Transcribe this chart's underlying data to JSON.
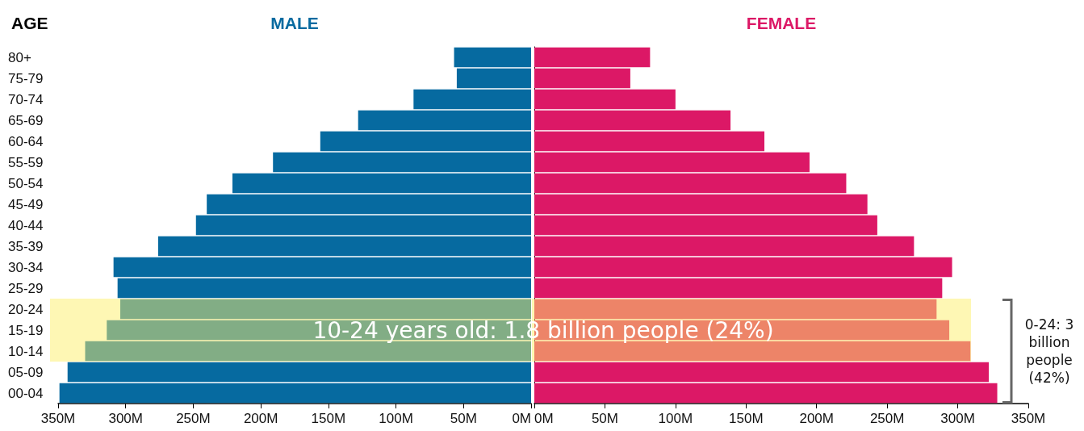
{
  "chart_data": [
    {
      "type": "bar",
      "orientation": "horizontal",
      "ylabel": "AGE",
      "categories": [
        "80+",
        "75-79",
        "70-74",
        "65-69",
        "60-64",
        "55-59",
        "50-54",
        "45-49",
        "40-44",
        "35-39",
        "30-34",
        "25-29",
        "20-24",
        "15-19",
        "10-14",
        "05-09",
        "00-04"
      ],
      "series": [
        {
          "name": "MALE",
          "color": "#066aa0",
          "values": [
            57,
            55,
            87,
            128,
            156,
            191,
            221,
            240,
            248,
            276,
            309,
            306,
            304,
            314,
            330,
            343,
            349
          ]
        }
      ],
      "xlim": [
        350,
        0
      ],
      "xticks": [
        {
          "value": 350,
          "label": "350M"
        },
        {
          "value": 300,
          "label": "300M"
        },
        {
          "value": 250,
          "label": "250M"
        },
        {
          "value": 200,
          "label": "200M"
        },
        {
          "value": 150,
          "label": "150M"
        },
        {
          "value": 100,
          "label": "100M"
        },
        {
          "value": 50,
          "label": "50M"
        },
        {
          "value": 0,
          "label": "0M"
        }
      ],
      "bands": [
        {
          "axis": "y",
          "from": "10-14",
          "to": "20-24",
          "label": "10-24 years old: 1.8 billion people (24%)",
          "color": "#fdf06a"
        }
      ],
      "grid": false,
      "legend": false
    },
    {
      "type": "bar",
      "orientation": "horizontal",
      "categories": [
        "80+",
        "75-79",
        "70-74",
        "65-69",
        "60-64",
        "55-59",
        "50-54",
        "45-49",
        "40-44",
        "35-39",
        "30-34",
        "25-29",
        "20-24",
        "15-19",
        "10-14",
        "05-09",
        "00-04"
      ],
      "series": [
        {
          "name": "FEMALE",
          "color": "#dc1866",
          "values": [
            82,
            68,
            100,
            139,
            163,
            195,
            221,
            236,
            243,
            269,
            296,
            289,
            285,
            294,
            309,
            322,
            328
          ]
        }
      ],
      "xlim": [
        0,
        350
      ],
      "xticks": [
        {
          "value": 0,
          "label": "0M"
        },
        {
          "value": 50,
          "label": "50M"
        },
        {
          "value": 100,
          "label": "100M"
        },
        {
          "value": 150,
          "label": "150M"
        },
        {
          "value": 200,
          "label": "200M"
        },
        {
          "value": 250,
          "label": "250M"
        },
        {
          "value": 300,
          "label": "300M"
        },
        {
          "value": 350,
          "label": "350M"
        }
      ],
      "bands": [
        {
          "axis": "y",
          "from": "10-14",
          "to": "20-24",
          "color": "#fdf06a"
        }
      ],
      "annotations": [
        "0-24: 3 billion people (42%)"
      ],
      "tick_labels": "x",
      "grid": false,
      "legend": false
    }
  ]
}
